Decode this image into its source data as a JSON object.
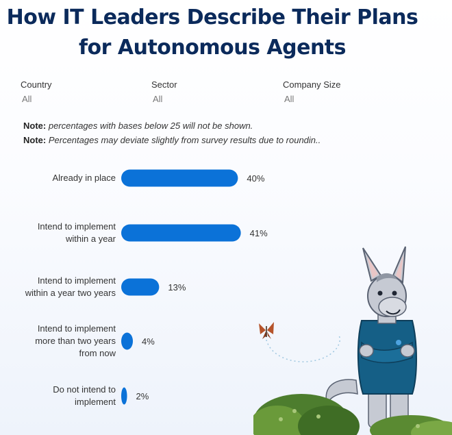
{
  "title_line1": "How IT Leaders Describe Their Plans",
  "title_line2": "for Autonomous Agents",
  "filters": [
    {
      "label": "Country",
      "value": "All"
    },
    {
      "label": "Sector",
      "value": "All"
    },
    {
      "label": "Company Size",
      "value": "All"
    }
  ],
  "notes": [
    {
      "key": "Note:",
      "text": "percentages with bases below 25 will not be shown."
    },
    {
      "key": "Note:",
      "text": "Percentages may deviate slightly from survey results due to roundin.."
    }
  ],
  "colors": {
    "bar": "#0b72d8",
    "title": "#0b2a5b"
  },
  "chart_data": {
    "type": "bar",
    "orientation": "horizontal",
    "categories": [
      [
        "Already in place"
      ],
      [
        "Intend to implement",
        "within a year"
      ],
      [
        "Intend to implement",
        "within a year two years"
      ],
      [
        "Intend to implement",
        "more than two years",
        "from now"
      ],
      [
        "Do not intend to",
        "implement"
      ]
    ],
    "values": [
      40,
      41,
      13,
      4,
      2
    ],
    "value_labels": [
      "40%",
      "41%",
      "13%",
      "4%",
      "2%"
    ],
    "unit": "%",
    "xlim": [
      0,
      100
    ],
    "grid": false
  }
}
